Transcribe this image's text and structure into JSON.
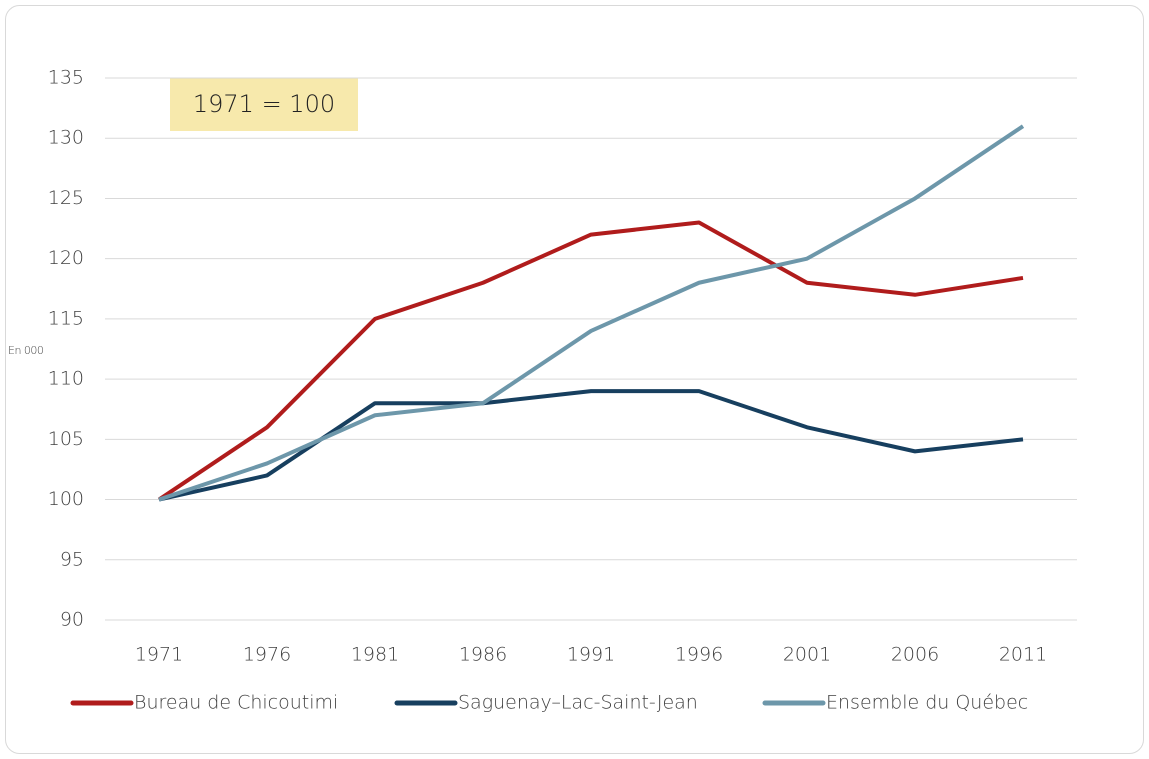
{
  "chart_data": {
    "type": "line",
    "annotation": "1971 = 100",
    "y_label": "En 000",
    "categories": [
      "1971",
      "1976",
      "1981",
      "1986",
      "1991",
      "1996",
      "2001",
      "2006",
      "2011"
    ],
    "series": [
      {
        "name": "Bureau de Chicoutimi",
        "color": "#b01c1c",
        "values": [
          100,
          106,
          115,
          118,
          122,
          123,
          118,
          117,
          118.4
        ]
      },
      {
        "name": "Saguenay–Lac-Saint-Jean",
        "color": "#173f5f",
        "values": [
          100,
          102,
          108,
          108,
          109,
          109,
          106,
          104,
          105
        ]
      },
      {
        "name": "Ensemble du Québec",
        "color": "#6d97aa",
        "values": [
          100,
          103,
          107,
          108,
          114,
          118,
          120,
          125,
          131
        ]
      }
    ],
    "ylim": [
      90,
      135
    ],
    "yticks": [
      90,
      95,
      100,
      105,
      110,
      115,
      120,
      125,
      130,
      135
    ],
    "grid": true,
    "legend": "bottom"
  }
}
